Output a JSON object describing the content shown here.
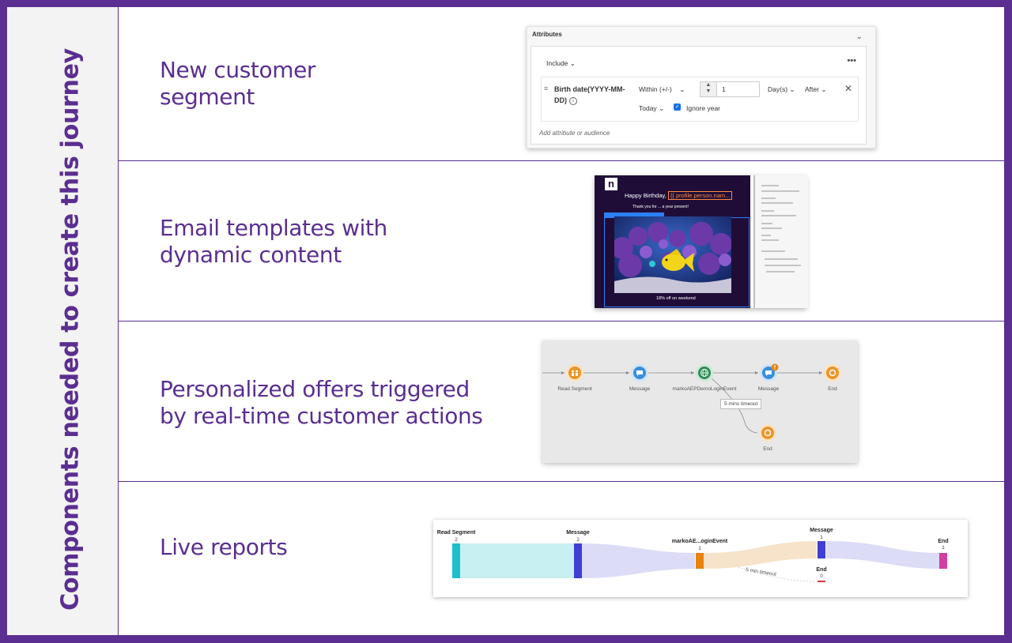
{
  "sidebar": {
    "title": "Components needed to create this journey"
  },
  "rows": [
    {
      "label_line1": "New customer",
      "label_line2": "segment"
    },
    {
      "label_line1": "Email templates with",
      "label_line2": "dynamic content"
    },
    {
      "label_line1": "Personalized offers triggered",
      "label_line2": "by real-time customer actions"
    },
    {
      "label_line1": "Live reports",
      "label_line2": ""
    }
  ],
  "attributes_panel": {
    "title": "Attributes",
    "include": "Include",
    "field_line1": "Birth date(YYYY-MM-",
    "field_line2": "DD)",
    "operator": "Within (+/-)",
    "value": "1",
    "unit": "Day(s)",
    "direction": "After",
    "reference": "Today",
    "ignore_year": "Ignore year",
    "add_link": "Add attribute or audience"
  },
  "email_template": {
    "logo": "n",
    "greeting": "Happy Birthday,",
    "token": "{{ profile.person.nam...",
    "subline": "Thank you for ... a year present!",
    "footer": "18% off on weekend"
  },
  "journey": {
    "nodes": [
      {
        "label": "Read Segment",
        "color": "#e8952b",
        "icon": "people-icon"
      },
      {
        "label": "Message",
        "color": "#3b8fd8",
        "icon": "message-icon"
      },
      {
        "label": "markoAEPDemoLoginEvent",
        "color": "#2e8b57",
        "icon": "globe-icon"
      },
      {
        "label": "Message",
        "color": "#3b8fd8",
        "icon": "message-icon"
      },
      {
        "label": "End",
        "color": "#e8952b",
        "icon": "stop-icon"
      },
      {
        "label": "End",
        "color": "#e8952b",
        "icon": "stop-icon"
      }
    ],
    "timeout": "5 mins timeout"
  },
  "report": {
    "stages": [
      {
        "label": "Read Segment",
        "count": "2",
        "color": "#1ec0c9"
      },
      {
        "label": "Message",
        "count": "2",
        "color": "#3f3fd6"
      },
      {
        "label": "markoAE...oginEvent",
        "count": "1",
        "color": "#e8830c"
      },
      {
        "label": "Message",
        "count": "1",
        "color": "#3f3fd6"
      },
      {
        "label": "End",
        "count": "1",
        "color": "#d23f9e"
      },
      {
        "label": "End",
        "count": "0",
        "color": "#d63b3b"
      }
    ],
    "timeout": "5 min timeout"
  }
}
